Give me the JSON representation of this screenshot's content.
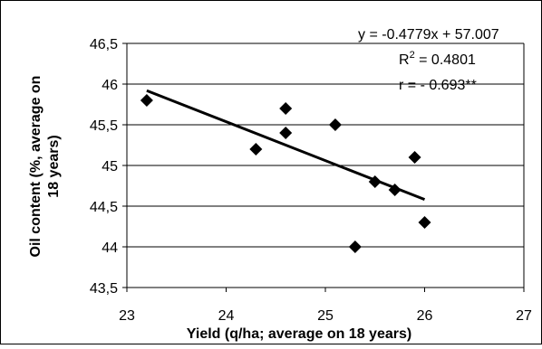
{
  "chart_data": {
    "type": "scatter",
    "title": "",
    "xlabel": "Yield (q/ha; average on 18 years)",
    "ylabel": "Oil content (%, average on 18 years)",
    "xlim": [
      23,
      27
    ],
    "ylim": [
      43.5,
      46.5
    ],
    "x_ticks": [
      23,
      24,
      25,
      26,
      27
    ],
    "x_tick_labels": [
      "23",
      "24",
      "25",
      "26",
      "27"
    ],
    "y_ticks": [
      43.5,
      44,
      44.5,
      45,
      45.5,
      46,
      46.5
    ],
    "y_tick_labels": [
      "43,5",
      "44",
      "44,5",
      "45",
      "45,5",
      "46",
      "46,5"
    ],
    "grid": "horizontal",
    "legend": "none",
    "points": [
      {
        "x": 23.2,
        "y": 45.8
      },
      {
        "x": 24.3,
        "y": 45.2
      },
      {
        "x": 24.6,
        "y": 45.7
      },
      {
        "x": 24.6,
        "y": 45.4
      },
      {
        "x": 25.1,
        "y": 45.5
      },
      {
        "x": 25.3,
        "y": 44.0
      },
      {
        "x": 25.5,
        "y": 44.8
      },
      {
        "x": 25.7,
        "y": 44.7
      },
      {
        "x": 25.9,
        "y": 45.1
      },
      {
        "x": 26.0,
        "y": 44.3
      }
    ],
    "trendline": {
      "type": "linear",
      "slope": -0.4779,
      "intercept": 57.007,
      "x_range": [
        23.2,
        26.0
      ],
      "equation": "y = -0.4779x + 57.007",
      "r_squared_label": "R",
      "r_squared_value": " = 0.4801",
      "r_label": "r = - 0.693**"
    },
    "colors": {
      "marker": "#000000",
      "trendline": "#000000",
      "grid": "#000000",
      "background": "#ffffff"
    }
  }
}
